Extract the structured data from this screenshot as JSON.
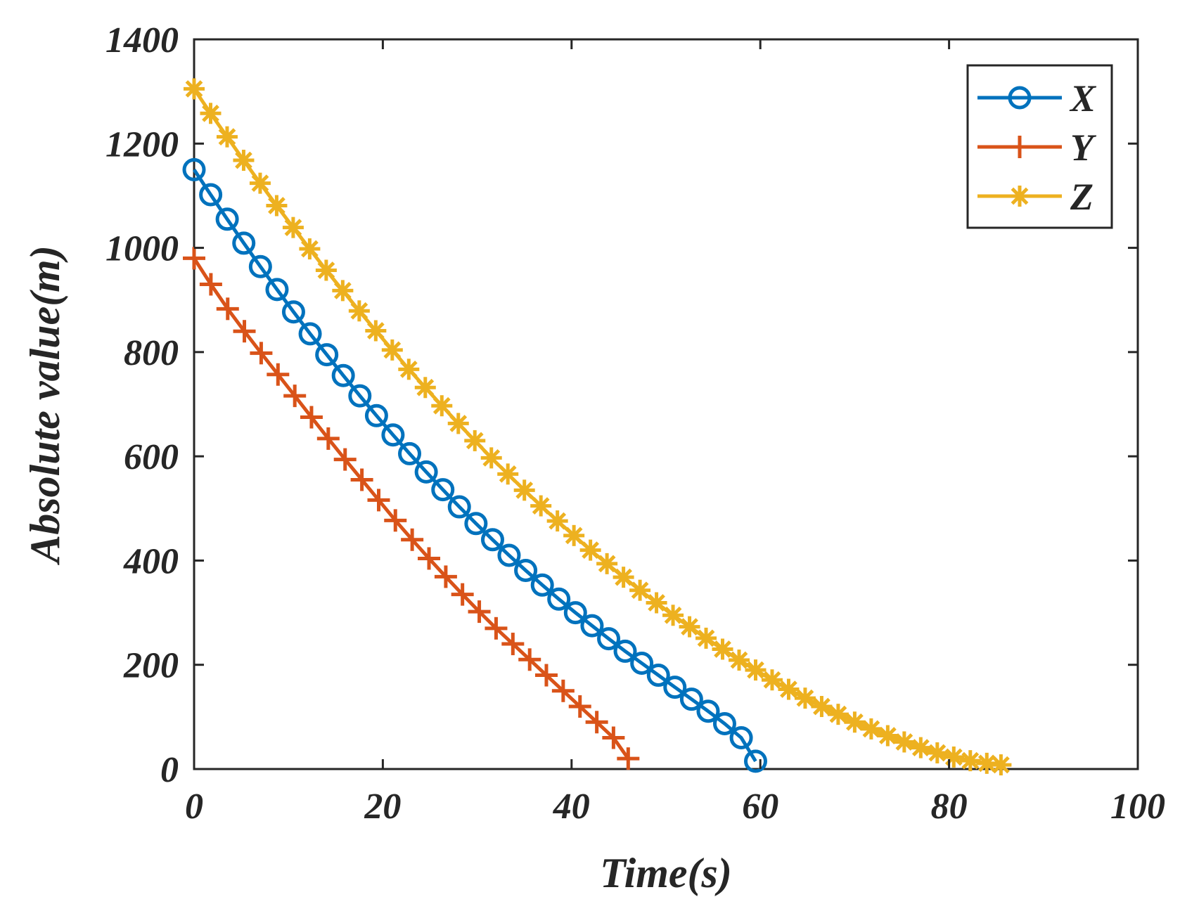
{
  "chart_data": {
    "type": "line",
    "title": "",
    "xlabel": "Time(s)",
    "ylabel": "Absolute value(m)",
    "xlim": [
      0,
      100
    ],
    "ylim": [
      0,
      1400
    ],
    "xticks": [
      0,
      20,
      40,
      60,
      80,
      100
    ],
    "yticks": [
      0,
      200,
      400,
      600,
      800,
      1000,
      1200,
      1400
    ],
    "grid": false,
    "legend_position": "top-right",
    "series": [
      {
        "name": "X",
        "color": "#0072BD",
        "marker": "circle",
        "x": [
          0,
          1.76,
          3.51,
          5.27,
          7.03,
          8.79,
          10.54,
          12.3,
          14.06,
          15.81,
          17.57,
          19.33,
          21.08,
          22.84,
          24.6,
          26.36,
          28.11,
          29.87,
          31.63,
          33.38,
          35.14,
          36.9,
          38.65,
          40.41,
          42.17,
          43.93,
          45.68,
          47.44,
          49.2,
          50.95,
          52.71,
          54.47,
          56.22,
          57.98,
          59.5
        ],
        "y": [
          1150,
          1102,
          1055,
          1009,
          964,
          920,
          877,
          835,
          795,
          755,
          716,
          678,
          641,
          605,
          570,
          536,
          503,
          471,
          440,
          410,
          381,
          353,
          326,
          300,
          275,
          250,
          226,
          203,
          180,
          157,
          134,
          111,
          87,
          60,
          15
        ]
      },
      {
        "name": "Y",
        "color": "#D95319",
        "marker": "plus",
        "x": [
          0,
          1.78,
          3.56,
          5.33,
          7.11,
          8.89,
          10.67,
          12.44,
          14.22,
          16.0,
          17.78,
          19.56,
          21.33,
          23.11,
          24.89,
          26.67,
          28.44,
          30.22,
          32.0,
          33.78,
          35.56,
          37.33,
          39.11,
          40.89,
          42.67,
          44.44,
          46.0
        ],
        "y": [
          980,
          930,
          883,
          840,
          798,
          757,
          716,
          675,
          634,
          594,
          555,
          516,
          477,
          440,
          404,
          369,
          335,
          302,
          270,
          240,
          210,
          180,
          150,
          120,
          90,
          60,
          20
        ]
      },
      {
        "name": "Z",
        "color": "#EDB120",
        "marker": "asterisk",
        "x": [
          0,
          1.75,
          3.5,
          5.25,
          7.0,
          8.75,
          10.5,
          12.25,
          14.0,
          15.75,
          17.5,
          19.25,
          21.0,
          22.75,
          24.5,
          26.25,
          28.0,
          29.75,
          31.5,
          33.25,
          35.0,
          36.75,
          38.5,
          40.25,
          42.0,
          43.75,
          45.5,
          47.25,
          49.0,
          50.75,
          52.5,
          54.25,
          56.0,
          57.75,
          59.5,
          61.25,
          63.0,
          64.75,
          66.5,
          68.25,
          70.0,
          71.75,
          73.5,
          75.25,
          77.0,
          78.75,
          80.5,
          82.25,
          84.0,
          85.5
        ],
        "y": [
          1305,
          1258,
          1213,
          1168,
          1124,
          1081,
          1039,
          998,
          957,
          918,
          879,
          841,
          804,
          767,
          732,
          697,
          663,
          630,
          597,
          566,
          535,
          505,
          476,
          448,
          420,
          394,
          368,
          343,
          319,
          295,
          273,
          251,
          230,
          209,
          190,
          171,
          153,
          136,
          120,
          105,
          90,
          77,
          64,
          52,
          41,
          31,
          23,
          16,
          11,
          8
        ]
      }
    ]
  }
}
